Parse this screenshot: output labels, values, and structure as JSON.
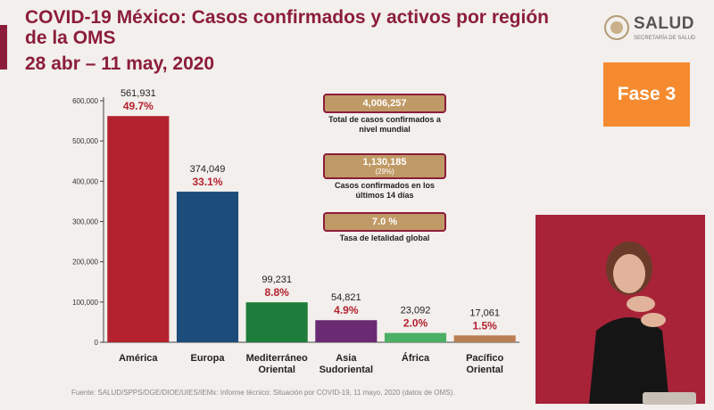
{
  "header": {
    "title": "COVID-19 México: Casos confirmados y activos por región de la OMS",
    "subtitle": "28 abr – 11 may, 2020"
  },
  "logo": {
    "word": "SALUD",
    "sub": "SECRETARÍA DE SALUD"
  },
  "phase_badge": "Fase 3",
  "info_boxes": [
    {
      "value": "4,006,257",
      "value_note": "",
      "desc": "Total de casos confirmados a nivel mundial"
    },
    {
      "value": "1,130,185",
      "value_note": "(29%)",
      "desc": "Casos confirmados en los últimos 14 días"
    },
    {
      "value": "7.0 %",
      "value_note": "",
      "desc": "Tasa de letalidad global"
    }
  ],
  "source": "Fuente: SALUD/SPPS/DGE/DIOE/UIES/IEMx: Informe técnico: Situación por COVID-19, 11 mayo, 2020 (datos de OMS).",
  "chart_data": {
    "type": "bar",
    "title": "COVID-19 México: Casos confirmados y activos por región de la OMS",
    "categories": [
      "América",
      "Europa",
      "Mediterráneo Oriental",
      "Asia Sudoriental",
      "África",
      "Pacífico Oriental"
    ],
    "values": [
      561931,
      374049,
      99231,
      54821,
      23092,
      17061
    ],
    "value_labels": [
      "561,931",
      "374,049",
      "99,231",
      "54,821",
      "23,092",
      "17,061"
    ],
    "percent_labels": [
      "49.7%",
      "33.1%",
      "8.8%",
      "4.9%",
      "2.0%",
      "1.5%"
    ],
    "colors": [
      "#b5222f",
      "#1c4c7a",
      "#1e7d3a",
      "#6a2b73",
      "#4caf66",
      "#b97f52"
    ],
    "percent_color": "#b5222f",
    "ylim": [
      0,
      600000
    ],
    "yticks": [
      0,
      100000,
      200000,
      300000,
      400000,
      500000,
      600000
    ],
    "ytick_labels": [
      "0",
      "100,000",
      "200,000",
      "300,000",
      "400,000",
      "500,000",
      "600,000"
    ],
    "xlabel": "",
    "ylabel": "",
    "grid": false
  }
}
